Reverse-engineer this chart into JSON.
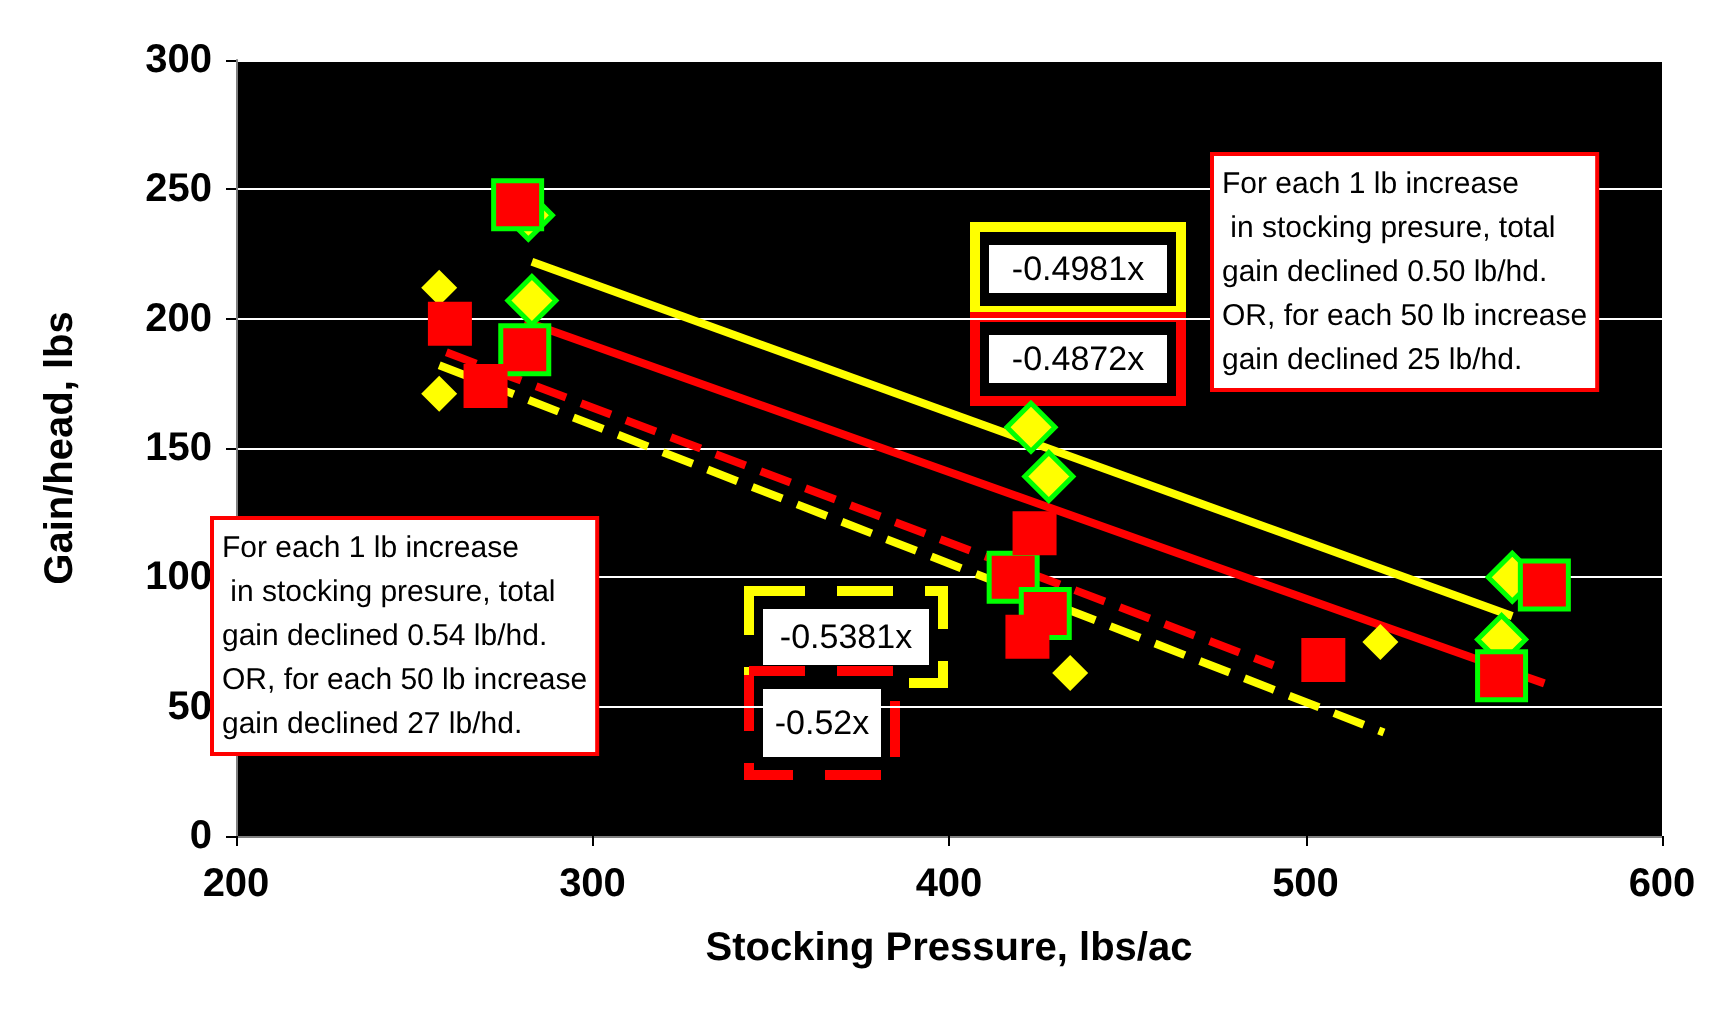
{
  "chart_data": {
    "type": "scatter",
    "xlabel": "Stocking Pressure, lbs/ac",
    "ylabel": "Gain/head, lbs",
    "xlim": [
      200,
      600
    ],
    "xticks": [
      200,
      300,
      400,
      500,
      600
    ],
    "ylim": [
      0,
      300
    ],
    "yticks": [
      0,
      50,
      100,
      150,
      200,
      250,
      300
    ],
    "grid": "y",
    "series": [
      {
        "marker": "diamond",
        "color": "#ffff00",
        "x": [
          282,
          283,
          423,
          428,
          558,
          555
        ],
        "values": [
          240,
          207,
          158,
          139,
          100,
          76
        ]
      },
      {
        "marker": "square",
        "color": "#ff0000",
        "x": [
          279,
          281,
          418,
          427,
          567,
          555
        ],
        "values": [
          244,
          188,
          100,
          86,
          97,
          62
        ]
      },
      {
        "marker": "diamond",
        "color": "#ffff00",
        "x": [
          257,
          257,
          434,
          521
        ],
        "values": [
          212,
          171,
          63,
          75
        ]
      },
      {
        "marker": "square",
        "color": "#ff0000",
        "x": [
          260,
          270,
          424,
          422,
          505
        ],
        "values": [
          198,
          174,
          117,
          77,
          68
        ]
      },
      {
        "type": "line",
        "name": "-0.4981x",
        "marker": "none",
        "line_style": "solid",
        "color": "#ffff00",
        "x": [
          283,
          558
        ],
        "values": [
          222,
          85
        ]
      },
      {
        "type": "line",
        "name": "-0.4872x",
        "marker": "none",
        "line_style": "solid",
        "color": "#ff0000",
        "x": [
          281,
          567
        ],
        "values": [
          199,
          59
        ]
      },
      {
        "type": "line",
        "name": "-0.5381x",
        "marker": "none",
        "line_style": "dashed",
        "color": "#ffff00",
        "x": [
          257,
          522
        ],
        "values": [
          182,
          40
        ]
      },
      {
        "type": "line",
        "name": "-0.52x",
        "marker": "none",
        "line_style": "dashed",
        "color": "#ff0000",
        "x": [
          259,
          491
        ],
        "values": [
          187,
          66
        ]
      }
    ],
    "annotations": [
      "For each 1 lb increase\n in stocking presure, total\ngain declined 0.50 lb/hd.\nOR, for each 50 lb increase\ngain declined 25 lb/hd.",
      "For each 1 lb increase\n in stocking presure, total\ngain declined 0.54 lb/hd.\nOR, for each 50 lb increase\ngain declined 27 lb/hd."
    ]
  }
}
